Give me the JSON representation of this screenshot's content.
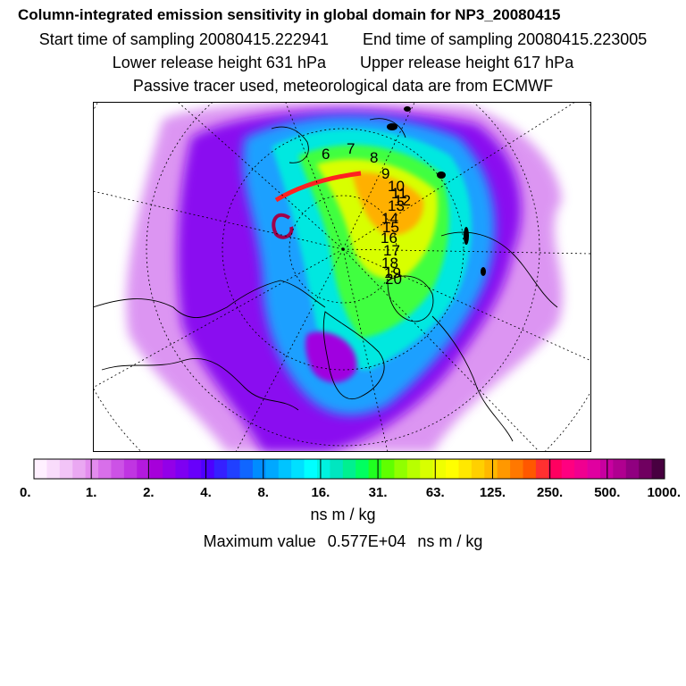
{
  "header": {
    "title": "Column-integrated emission sensitivity in global domain for NP3_20080415",
    "start_label": "Start time of sampling",
    "start_value": "20080415.222941",
    "end_label": "End time of sampling",
    "end_value": "20080415.223005",
    "lower_label": "Lower release height",
    "lower_value": "631 hPa",
    "upper_label": "Upper release height",
    "upper_value": "617 hPa",
    "note": "Passive tracer used, meteorological data are from ECMWF"
  },
  "chart_data": {
    "type": "heatmap",
    "projection": "north-polar-stereographic",
    "quantity": "Column-integrated emission sensitivity",
    "units": "ns m / kg",
    "colorbar_ticks": [
      "0.",
      "1.",
      "2.",
      "4.",
      "8.",
      "16.",
      "31.",
      "63.",
      "125.",
      "250.",
      "500.",
      "1000."
    ],
    "colorbar_colors": [
      "#fff0ff",
      "#f9dcfb",
      "#f2c4f7",
      "#eaa8f2",
      "#e38cee",
      "#d86fea",
      "#cc52e6",
      "#c035e2",
      "#b31ade",
      "#a600da",
      "#9300e8",
      "#7e00f2",
      "#6800fb",
      "#4d00ff",
      "#3520ff",
      "#2040ff",
      "#1066ff",
      "#008cff",
      "#00a8ff",
      "#00c4ff",
      "#00e0ff",
      "#00ffff",
      "#00f2e0",
      "#00e6c0",
      "#00f090",
      "#00ff60",
      "#20ff20",
      "#60ff00",
      "#90ff00",
      "#b8ff00",
      "#d8ff00",
      "#f0ff00",
      "#ffff00",
      "#ffe800",
      "#ffd000",
      "#ffb800",
      "#ff9800",
      "#ff7800",
      "#ff5800",
      "#ff3030",
      "#ff0060",
      "#ff0080",
      "#f00090",
      "#e000a0",
      "#c800a0",
      "#b00090",
      "#900080",
      "#700060",
      "#480040"
    ],
    "trajectory_labels": [
      "6",
      "7",
      "8",
      "9",
      "10",
      "11",
      "12",
      "13",
      "14",
      "15",
      "16",
      "17",
      "18",
      "19",
      "20"
    ],
    "maximum_label": "Maximum value",
    "maximum_value": "0.577E+04",
    "maximum_units": "ns m / kg"
  }
}
